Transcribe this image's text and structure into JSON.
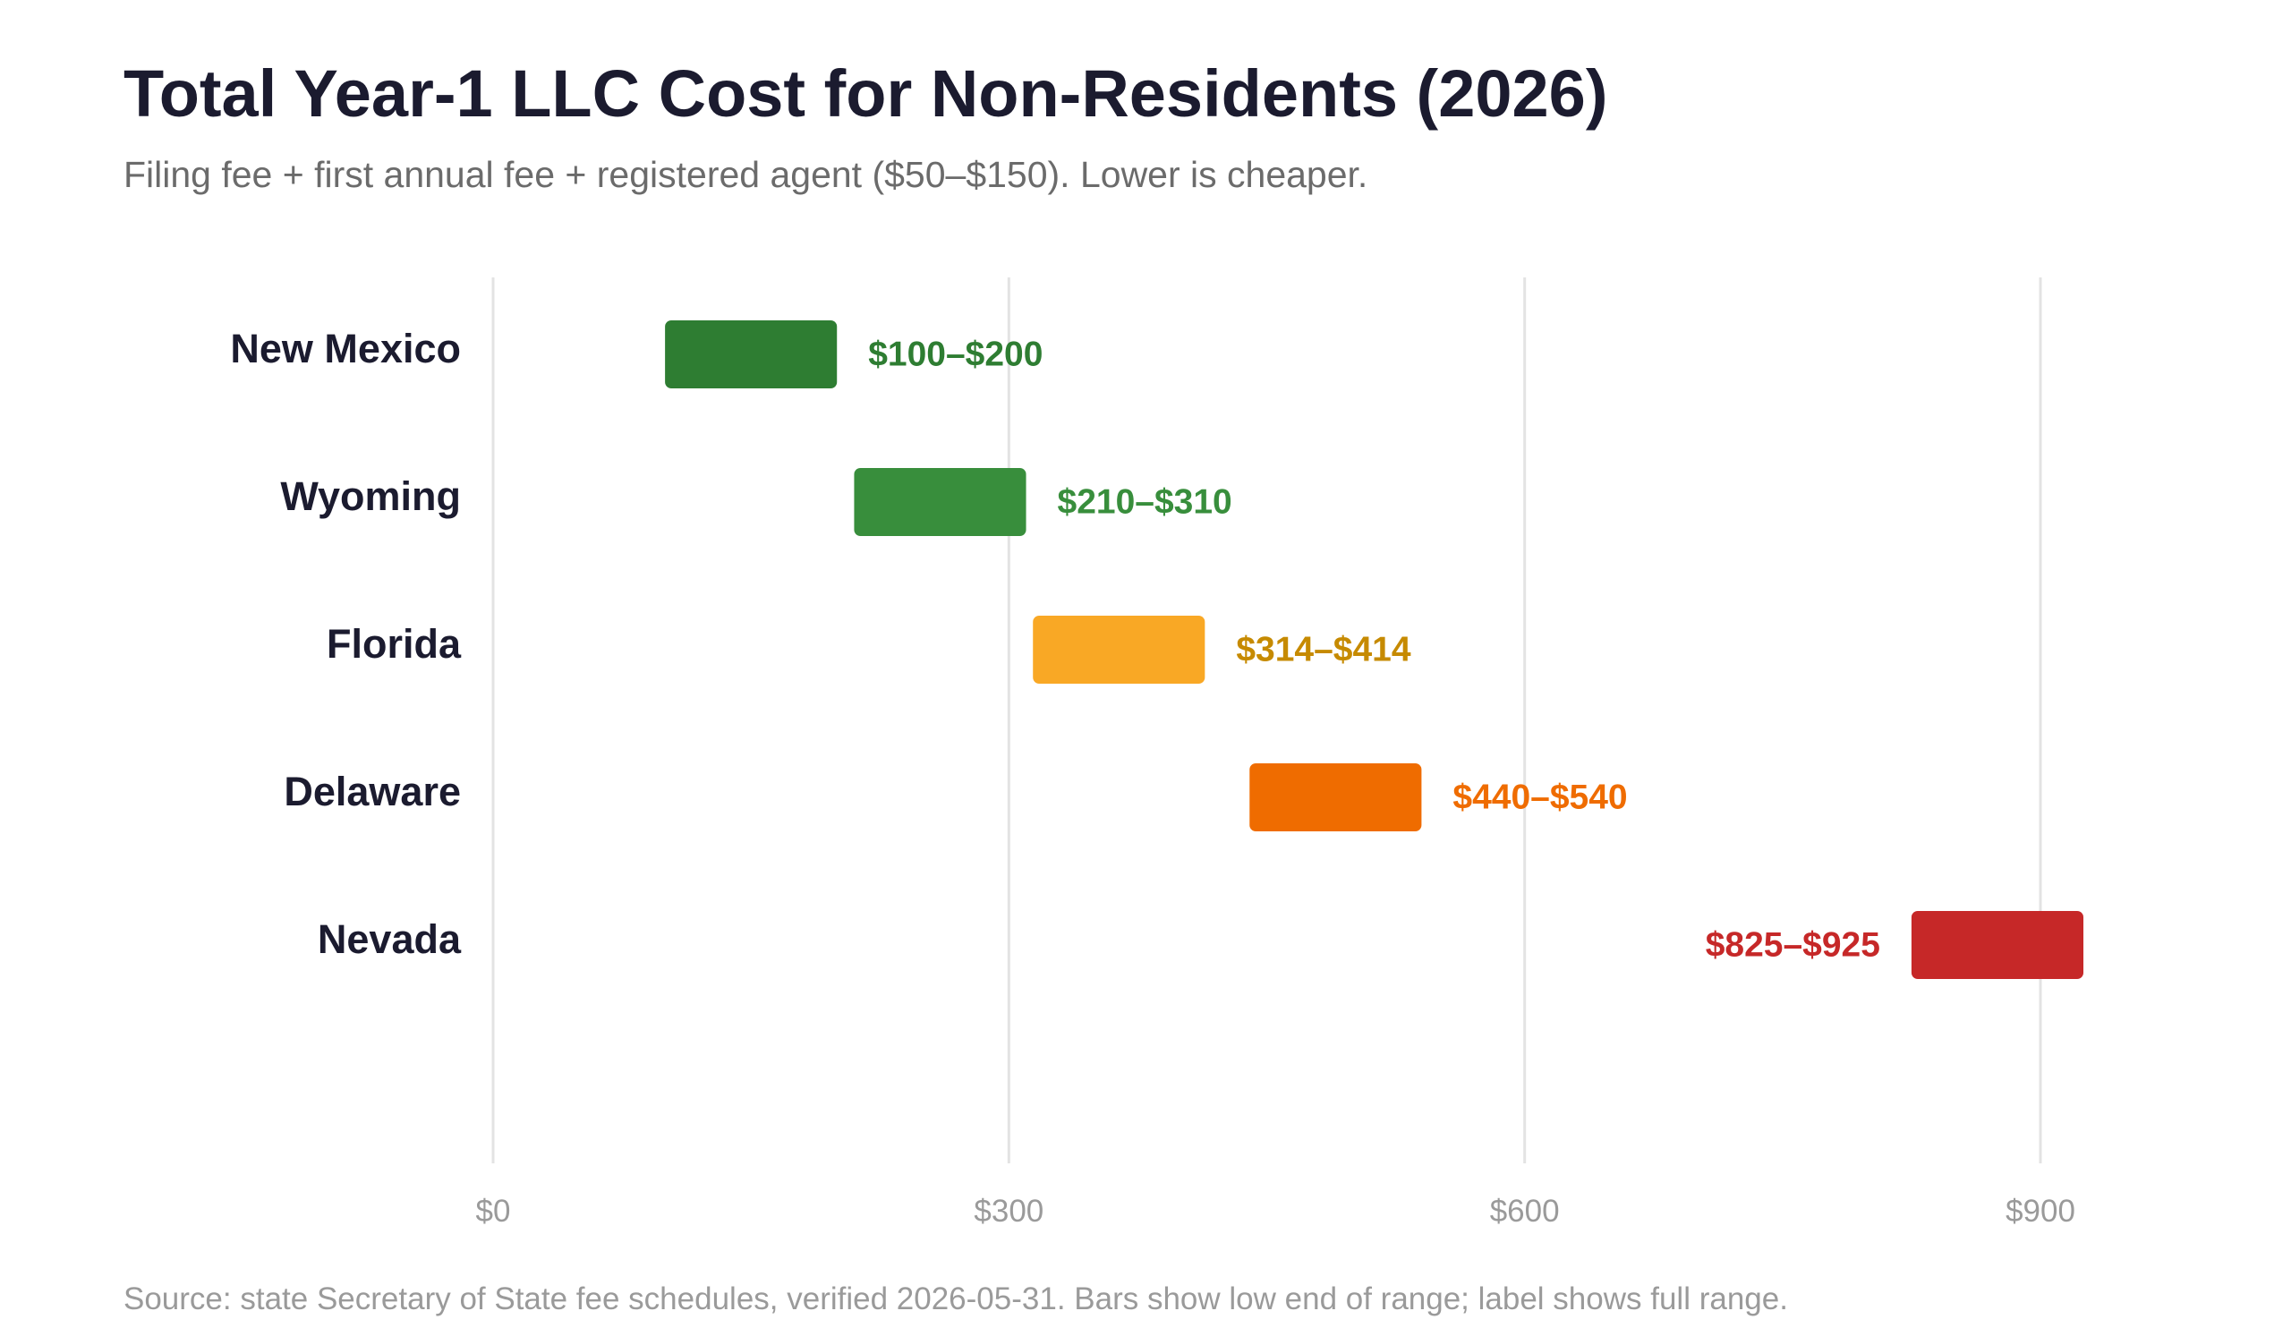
{
  "chart_data": {
    "type": "bar",
    "orientation": "horizontal",
    "title": "Total Year-1 LLC Cost for Non-Residents (2026)",
    "subtitle": "Filing fee + first annual fee + registered agent ($50–$150). Lower is cheaper.",
    "source": "Source: state Secretary of State fee schedules, verified 2026-05-31. Bars show low end of range; label shows full range.",
    "xlim": [
      0,
      900
    ],
    "ticks": [
      0,
      300,
      600,
      900
    ],
    "tick_labels": [
      "$0",
      "$300",
      "$600",
      "$900"
    ],
    "grid": "vertical",
    "categories": [
      "New Mexico",
      "Wyoming",
      "Florida",
      "Delaware",
      "Nevada"
    ],
    "ranges": [
      [
        100,
        200
      ],
      [
        210,
        310
      ],
      [
        314,
        414
      ],
      [
        440,
        540
      ],
      [
        825,
        925
      ]
    ],
    "labels": [
      "$100–$200",
      "$210–$310",
      "$314–$414",
      "$440–$540",
      "$825–$925"
    ],
    "bar_colors": [
      "#2e7d32",
      "#388e3c",
      "#f9a825",
      "#ef6c00",
      "#c62828"
    ],
    "label_colors": [
      "#2e7d32",
      "#388e3c",
      "#c68a00",
      "#ef6c00",
      "#c62828"
    ],
    "label_positions": [
      "right",
      "right",
      "right",
      "right",
      "left"
    ]
  }
}
